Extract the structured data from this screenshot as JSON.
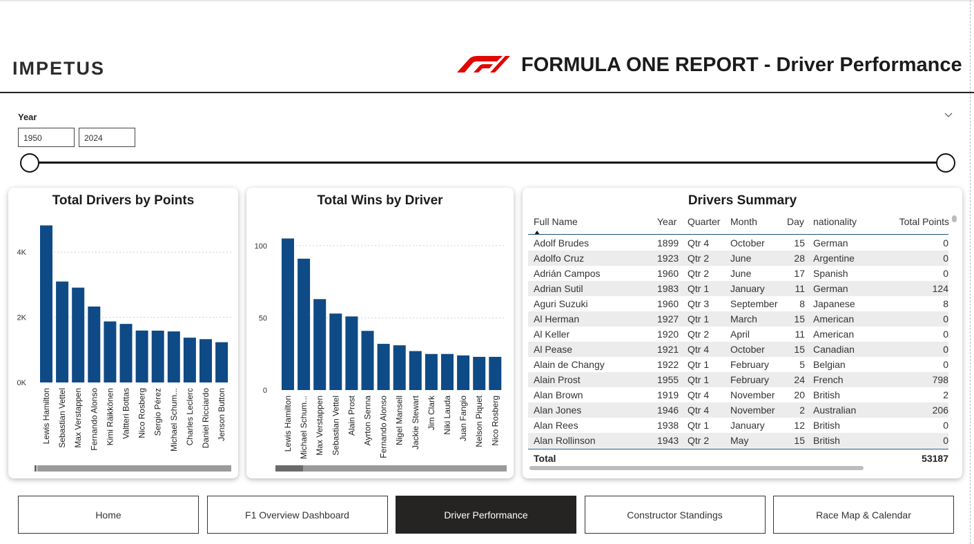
{
  "header": {
    "brand": "IMPETUS",
    "title": "FORMULA ONE REPORT - Driver Performance"
  },
  "slicer": {
    "label": "Year",
    "from": "1950",
    "to": "2024"
  },
  "colors": {
    "bar": "#0e4a86",
    "f1_red": "#e10600",
    "nav_active_bg": "#252423"
  },
  "points_chart": {
    "title": "Total Drivers by Points",
    "chart_data": {
      "type": "bar",
      "categories": [
        "Lewis Hamilton",
        "Sebastian Vettel",
        "Max Verstappen",
        "Fernando Alonso",
        "Kimi Räikkönen",
        "Valtteri Bottas",
        "Nico Rosberg",
        "Sergio Pérez",
        "Michael Schum...",
        "Charles Leclerc",
        "Daniel Ricciardo",
        "Jenson Button"
      ],
      "values": [
        4820,
        3098,
        2910,
        2330,
        1873,
        1797,
        1594,
        1590,
        1566,
        1375,
        1329,
        1235
      ],
      "yticks": [
        0,
        2000,
        4000
      ],
      "ytick_labels": [
        "0K",
        "2K",
        "4K"
      ],
      "ylim": [
        0,
        5000
      ],
      "grid": true
    }
  },
  "wins_chart": {
    "title": "Total Wins by Driver",
    "chart_data": {
      "type": "bar",
      "categories": [
        "Lewis Hamilton",
        "Michael Schum...",
        "Max Verstappen",
        "Sebastian Vettel",
        "Alain Prost",
        "Ayrton Senna",
        "Fernando Alonso",
        "Nigel Mansell",
        "Jackie Stewart",
        "Jim Clark",
        "Niki Lauda",
        "Juan Fangio",
        "Nelson Piquet",
        "Nico Rosberg"
      ],
      "values": [
        105,
        91,
        63,
        53,
        51,
        41,
        32,
        31,
        27,
        25,
        25,
        24,
        23,
        23
      ],
      "yticks": [
        0,
        50,
        100
      ],
      "ytick_labels": [
        "0",
        "50",
        "100"
      ],
      "ylim": [
        0,
        110
      ],
      "grid": true
    }
  },
  "summary": {
    "title": "Drivers Summary",
    "columns": [
      "Full Name",
      "Year",
      "Quarter",
      "Month",
      "Day",
      "nationality",
      "Total Points"
    ],
    "rows": [
      [
        "Adolf Brudes",
        "1899",
        "Qtr 4",
        "October",
        "15",
        "German",
        "0"
      ],
      [
        "Adolfo Cruz",
        "1923",
        "Qtr 2",
        "June",
        "28",
        "Argentine",
        "0"
      ],
      [
        "Adrián Campos",
        "1960",
        "Qtr 2",
        "June",
        "17",
        "Spanish",
        "0"
      ],
      [
        "Adrian Sutil",
        "1983",
        "Qtr 1",
        "January",
        "11",
        "German",
        "124"
      ],
      [
        "Aguri Suzuki",
        "1960",
        "Qtr 3",
        "September",
        "8",
        "Japanese",
        "8"
      ],
      [
        "Al Herman",
        "1927",
        "Qtr 1",
        "March",
        "15",
        "American",
        "0"
      ],
      [
        "Al Keller",
        "1920",
        "Qtr 2",
        "April",
        "11",
        "American",
        "0"
      ],
      [
        "Al Pease",
        "1921",
        "Qtr 4",
        "October",
        "15",
        "Canadian",
        "0"
      ],
      [
        "Alain de Changy",
        "1922",
        "Qtr 1",
        "February",
        "5",
        "Belgian",
        "0"
      ],
      [
        "Alain Prost",
        "1955",
        "Qtr 1",
        "February",
        "24",
        "French",
        "798"
      ],
      [
        "Alan Brown",
        "1919",
        "Qtr 4",
        "November",
        "20",
        "British",
        "2"
      ],
      [
        "Alan Jones",
        "1946",
        "Qtr 4",
        "November",
        "2",
        "Australian",
        "206"
      ],
      [
        "Alan Rees",
        "1938",
        "Qtr 1",
        "January",
        "12",
        "British",
        "0"
      ],
      [
        "Alan Rollinson",
        "1943",
        "Qtr 2",
        "May",
        "15",
        "British",
        "0"
      ]
    ],
    "total_label": "Total",
    "total_value": "53187"
  },
  "nav": {
    "buttons": [
      "Home",
      "F1 Overview Dashboard",
      "Driver Performance",
      "Constructor Standings",
      "Race Map & Calendar"
    ],
    "active": 2
  }
}
